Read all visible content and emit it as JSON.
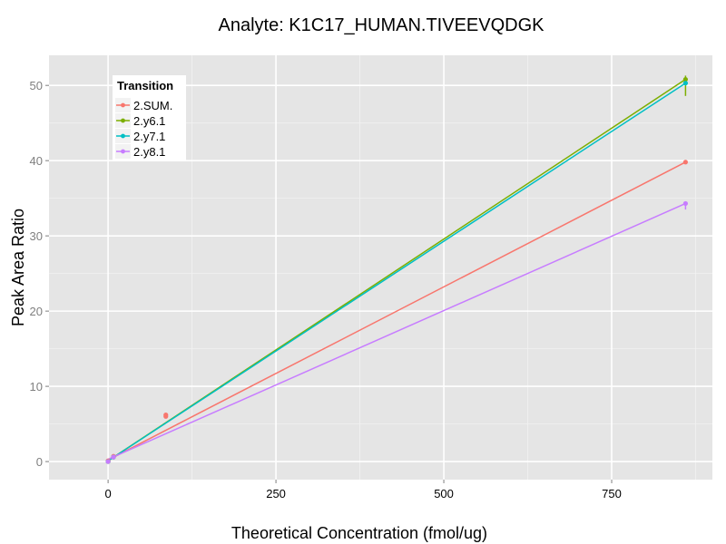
{
  "chart_data": {
    "type": "line",
    "title": "Analyte: K1C17_HUMAN.TIVEEVQDGK",
    "xlabel": "Theoretical Concentration (fmol/ug)",
    "ylabel": "Peak Area Ratio",
    "xlim": [
      -88,
      900
    ],
    "ylim": [
      -2.4,
      54
    ],
    "x_ticks": [
      0,
      250,
      500,
      750
    ],
    "x_tick_labels": [
      "0",
      "250",
      "500",
      "750"
    ],
    "y_ticks": [
      0,
      10,
      20,
      30,
      40,
      50
    ],
    "y_tick_labels": [
      "0",
      "10",
      "20",
      "30",
      "40",
      "50"
    ],
    "grid": true,
    "legend": {
      "title": "Transition",
      "position": "top-left"
    },
    "series": [
      {
        "name": "2.SUM.",
        "color": "#F8766D",
        "points": [
          [
            0,
            0.0
          ],
          [
            0,
            0.1
          ],
          [
            8,
            0.7
          ],
          [
            86,
            6.0
          ],
          [
            86,
            6.2
          ],
          [
            860,
            39.8
          ]
        ],
        "fit": [
          [
            0,
            0.2
          ],
          [
            860,
            39.8
          ]
        ]
      },
      {
        "name": "2.y6.1",
        "color": "#7CAE00",
        "points": [
          [
            0,
            0.0
          ],
          [
            8,
            0.6
          ],
          [
            860,
            50.8
          ]
        ],
        "errorbars": [
          [
            860,
            48.6,
            51.3
          ]
        ],
        "fit": [
          [
            0,
            0.1
          ],
          [
            860,
            50.8
          ]
        ]
      },
      {
        "name": "2.y7.1",
        "color": "#00BFC4",
        "points": [
          [
            0,
            0.0
          ],
          [
            8,
            0.6
          ],
          [
            860,
            50.3
          ]
        ],
        "fit": [
          [
            0,
            0.1
          ],
          [
            860,
            50.3
          ]
        ]
      },
      {
        "name": "2.y8.1",
        "color": "#C77CFF",
        "points": [
          [
            0,
            0.0
          ],
          [
            8,
            0.6
          ],
          [
            860,
            34.3
          ]
        ],
        "errorbars": [
          [
            860,
            33.5,
            34.5
          ]
        ],
        "fit": [
          [
            0,
            0.3
          ],
          [
            860,
            34.3
          ]
        ]
      }
    ]
  }
}
